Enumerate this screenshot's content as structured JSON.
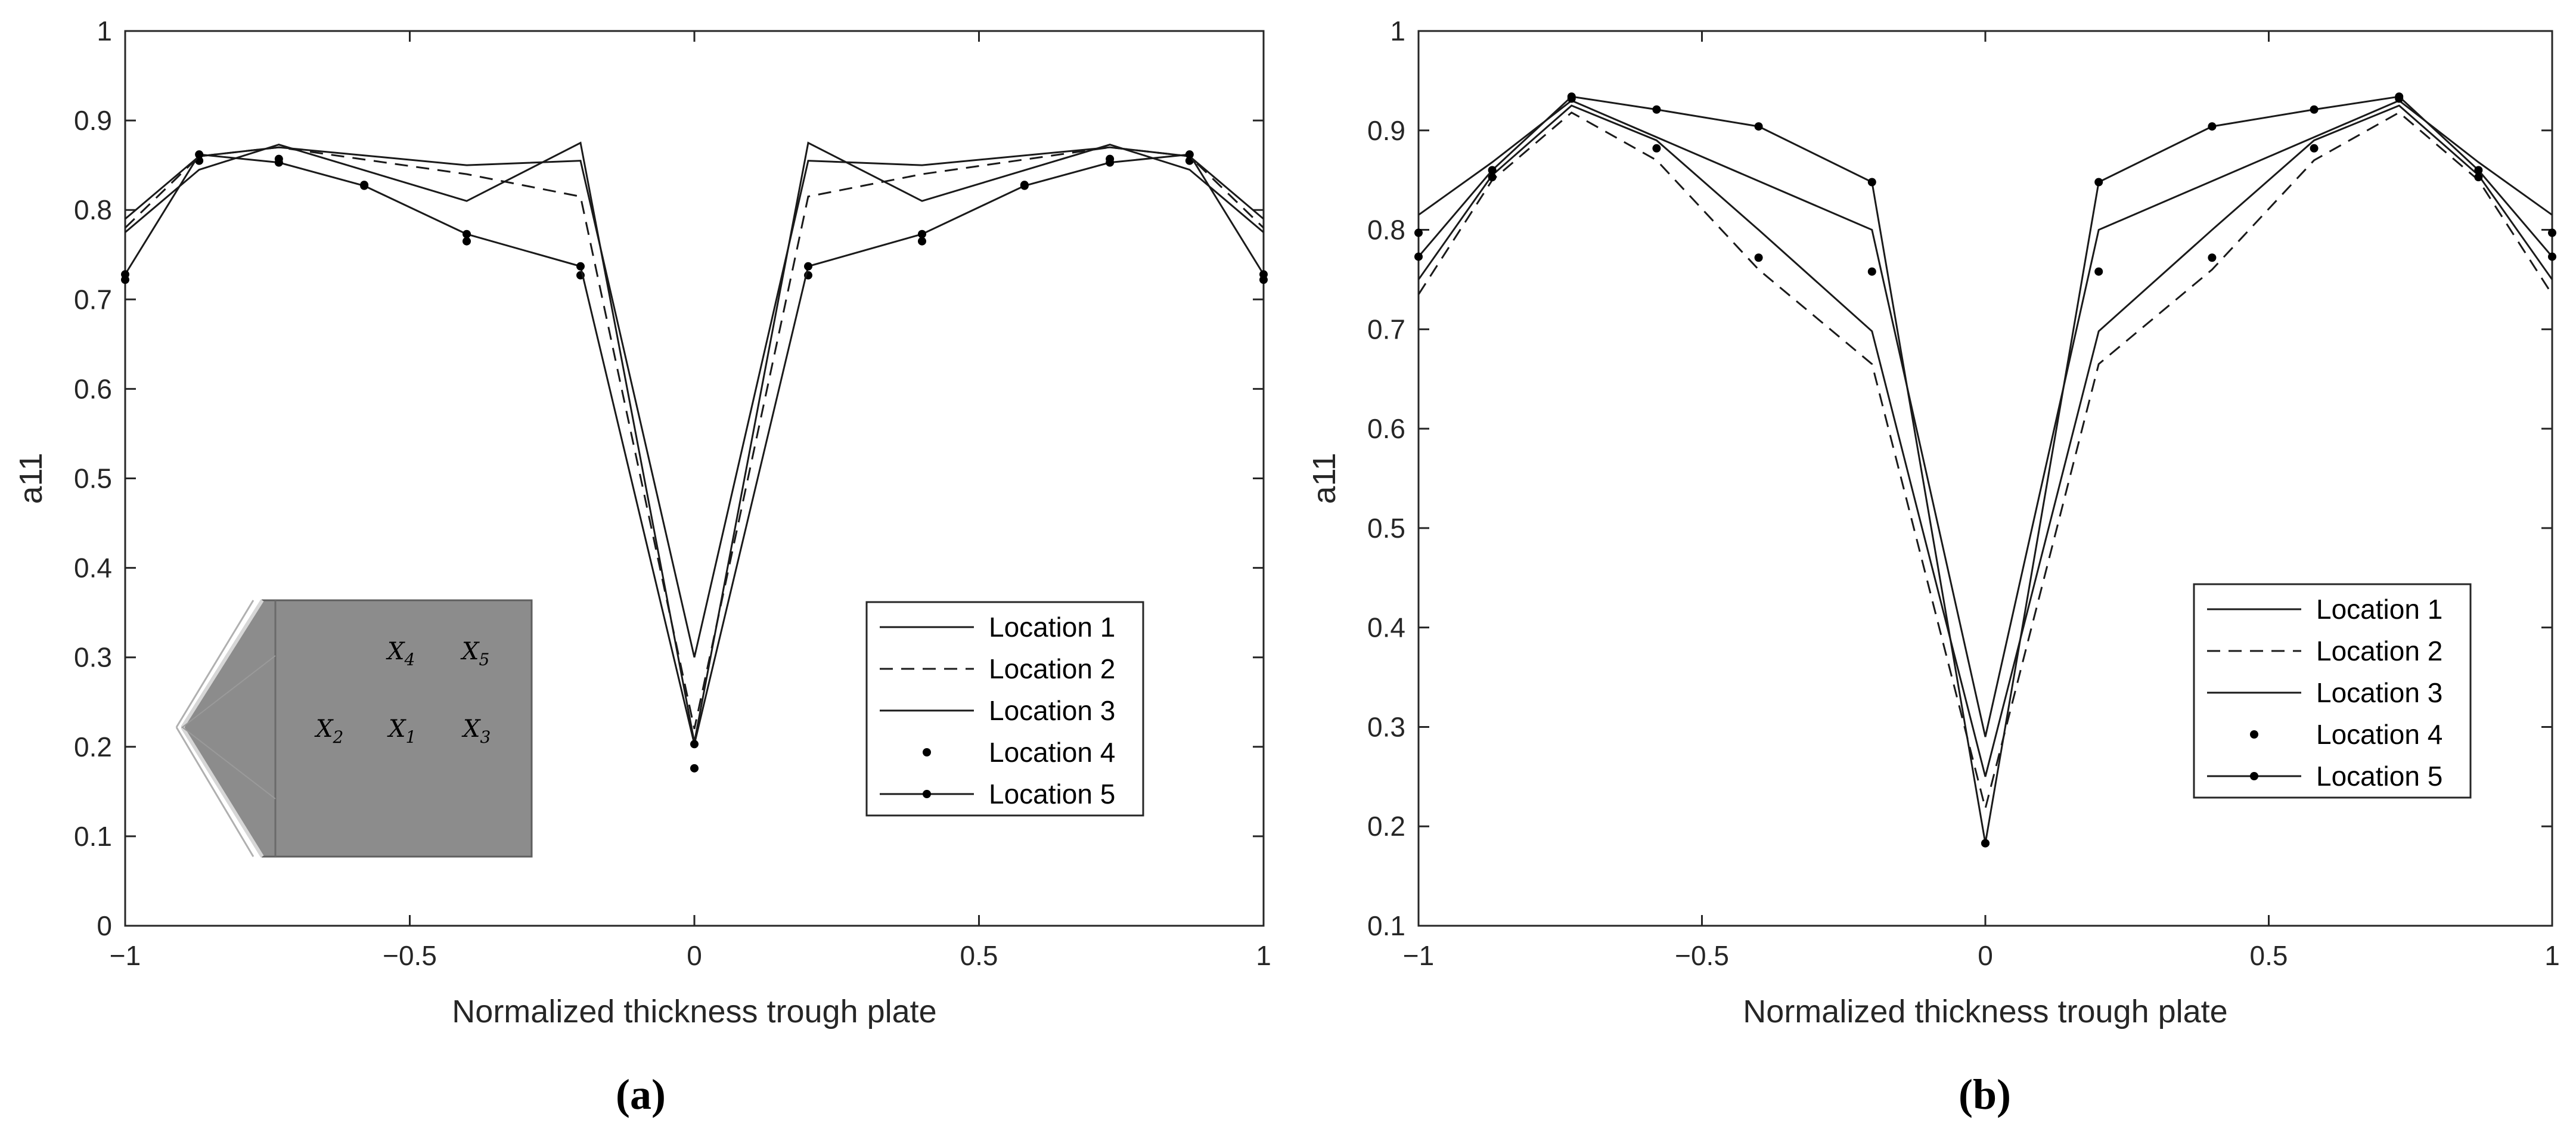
{
  "chart_data": [
    {
      "type": "line",
      "panel_id": "a",
      "caption": "(a)",
      "xlabel": "Normalized thickness trough plate",
      "ylabel": "a11",
      "xlim": [
        -1,
        1
      ],
      "ylim": [
        0,
        1
      ],
      "x_ticks": [
        -1,
        -0.5,
        0,
        0.5,
        1
      ],
      "x_tick_labels": [
        "−1",
        "−0.5",
        "0",
        "0.5",
        "1"
      ],
      "y_ticks": [
        0,
        0.1,
        0.2,
        0.3,
        0.4,
        0.5,
        0.6,
        0.7,
        0.8,
        0.9,
        1
      ],
      "y_tick_labels": [
        "0",
        "0.1",
        "0.2",
        "0.3",
        "0.4",
        "0.5",
        "0.6",
        "0.7",
        "0.8",
        "0.9",
        "1"
      ],
      "grid": false,
      "legend_position": "bottom-right",
      "series": [
        {
          "name": "Location 1",
          "style": "solid",
          "x": [
            -1,
            -0.87,
            -0.73,
            -0.4,
            -0.2,
            0,
            0.2,
            0.4,
            0.73,
            0.87,
            1
          ],
          "y": [
            0.79,
            0.86,
            0.87,
            0.85,
            0.855,
            0.3,
            0.855,
            0.85,
            0.87,
            0.86,
            0.79
          ]
        },
        {
          "name": "Location 2",
          "style": "dashed",
          "x": [
            -1,
            -0.87,
            -0.73,
            -0.4,
            -0.2,
            0,
            0.2,
            0.4,
            0.73,
            0.87,
            1
          ],
          "y": [
            0.78,
            0.86,
            0.87,
            0.84,
            0.815,
            0.22,
            0.815,
            0.84,
            0.87,
            0.86,
            0.78
          ]
        },
        {
          "name": "Location 3",
          "style": "solid",
          "x": [
            -1,
            -0.87,
            -0.73,
            -0.4,
            -0.2,
            0,
            0.2,
            0.4,
            0.73,
            0.87,
            1
          ],
          "y": [
            0.775,
            0.845,
            0.873,
            0.81,
            0.875,
            0.205,
            0.875,
            0.81,
            0.873,
            0.845,
            0.775
          ]
        },
        {
          "name": "Location 4",
          "style": "dots",
          "x": [
            -1,
            -0.87,
            -0.73,
            -0.58,
            -0.4,
            -0.2,
            0,
            0.2,
            0.4,
            0.58,
            0.73,
            0.87,
            1
          ],
          "y": [
            0.722,
            0.855,
            0.857,
            0.828,
            0.765,
            0.727,
            0.176,
            0.727,
            0.765,
            0.828,
            0.857,
            0.855,
            0.722
          ]
        },
        {
          "name": "Location 5",
          "style": "solid-dot",
          "x": [
            -1,
            -0.87,
            -0.73,
            -0.58,
            -0.4,
            -0.2,
            0,
            0.2,
            0.4,
            0.58,
            0.73,
            0.87,
            1
          ],
          "y": [
            0.728,
            0.862,
            0.853,
            0.827,
            0.773,
            0.737,
            0.203,
            0.737,
            0.773,
            0.827,
            0.853,
            0.862,
            0.728
          ]
        }
      ],
      "inset": {
        "labels": [
          {
            "text": "X",
            "sub": "4"
          },
          {
            "text": "X",
            "sub": "5"
          },
          {
            "text": "X",
            "sub": "2"
          },
          {
            "text": "X",
            "sub": "1"
          },
          {
            "text": "X",
            "sub": "3"
          }
        ]
      }
    },
    {
      "type": "line",
      "panel_id": "b",
      "caption": "(b)",
      "xlabel": "Normalized thickness trough plate",
      "ylabel": "a11",
      "xlim": [
        -1,
        1
      ],
      "ylim": [
        0.1,
        1
      ],
      "x_ticks": [
        -1,
        -0.5,
        0,
        0.5,
        1
      ],
      "x_tick_labels": [
        "−1",
        "−0.5",
        "0",
        "0.5",
        "1"
      ],
      "y_ticks": [
        0.1,
        0.2,
        0.3,
        0.4,
        0.5,
        0.6,
        0.7,
        0.8,
        0.9,
        1
      ],
      "y_tick_labels": [
        "0.1",
        "0.2",
        "0.3",
        "0.4",
        "0.5",
        "0.6",
        "0.7",
        "0.8",
        "0.9",
        "1"
      ],
      "grid": false,
      "legend_position": "bottom-right",
      "series": [
        {
          "name": "Location 1",
          "style": "solid",
          "x": [
            -1,
            -0.87,
            -0.73,
            -0.2,
            0,
            0.2,
            0.73,
            0.87,
            1
          ],
          "y": [
            0.815,
            0.868,
            0.93,
            0.8,
            0.29,
            0.8,
            0.93,
            0.868,
            0.815
          ]
        },
        {
          "name": "Location 2",
          "style": "dashed",
          "x": [
            -1,
            -0.87,
            -0.73,
            -0.58,
            -0.4,
            -0.2,
            0,
            0.2,
            0.4,
            0.58,
            0.73,
            0.87,
            1
          ],
          "y": [
            0.735,
            0.85,
            0.918,
            0.87,
            0.76,
            0.665,
            0.218,
            0.665,
            0.76,
            0.87,
            0.918,
            0.85,
            0.735
          ]
        },
        {
          "name": "Location 3",
          "style": "solid",
          "x": [
            -1,
            -0.87,
            -0.73,
            -0.58,
            -0.4,
            -0.2,
            0,
            0.2,
            0.4,
            0.58,
            0.73,
            0.87,
            1
          ],
          "y": [
            0.75,
            0.855,
            0.925,
            0.89,
            0.8,
            0.698,
            0.25,
            0.698,
            0.8,
            0.89,
            0.925,
            0.855,
            0.75
          ]
        },
        {
          "name": "Location 4",
          "style": "dots",
          "x": [
            -1,
            -0.87,
            -0.73,
            -0.58,
            -0.4,
            -0.2,
            0,
            0.2,
            0.4,
            0.58,
            0.73,
            0.87,
            1
          ],
          "y": [
            0.797,
            0.853,
            0.932,
            0.882,
            0.772,
            0.758,
            0.183,
            0.758,
            0.772,
            0.882,
            0.932,
            0.853,
            0.797
          ]
        },
        {
          "name": "Location 5",
          "style": "solid-dot",
          "x": [
            -1,
            -0.87,
            -0.73,
            -0.58,
            -0.4,
            -0.2,
            0,
            0.2,
            0.4,
            0.58,
            0.73,
            0.87,
            1
          ],
          "y": [
            0.773,
            0.86,
            0.934,
            0.921,
            0.904,
            0.848,
            0.183,
            0.848,
            0.904,
            0.921,
            0.934,
            0.86,
            0.773
          ]
        }
      ]
    }
  ]
}
